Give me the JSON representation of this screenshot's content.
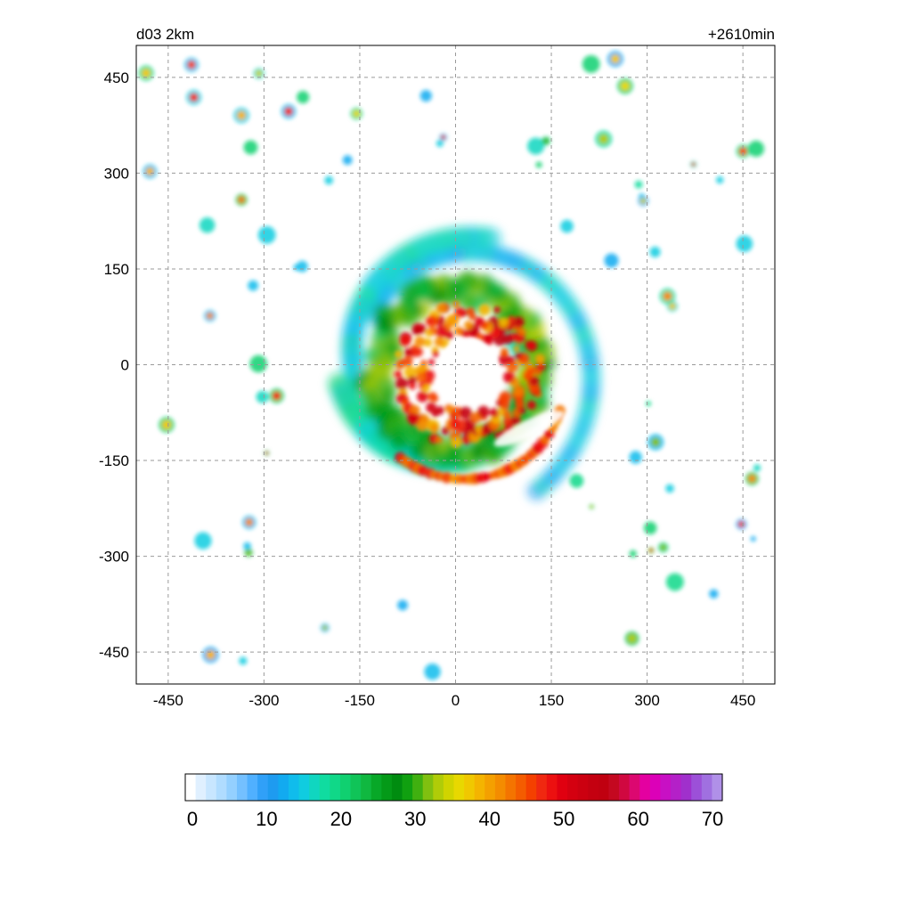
{
  "figure": {
    "domain_label": "d03 2km",
    "time_label": "+2610min"
  },
  "chart_data": {
    "type": "heatmap",
    "x_ticks": [
      -450,
      -300,
      -150,
      0,
      150,
      300,
      450
    ],
    "y_ticks": [
      450,
      300,
      150,
      0,
      -150,
      -300,
      -450
    ],
    "xlim": [
      -500,
      500
    ],
    "ylim": [
      -500,
      500
    ],
    "grid": true,
    "colorbar": {
      "ticks": [
        0,
        10,
        20,
        30,
        40,
        50,
        60,
        70
      ],
      "range": [
        0,
        70
      ],
      "colors": [
        "#ffffff",
        "#e0f0ff",
        "#c8e6ff",
        "#b0dcff",
        "#94d0ff",
        "#74c0ff",
        "#50b0ff",
        "#30a0f8",
        "#1e9bf0",
        "#12aaf0",
        "#10bcec",
        "#10cce0",
        "#10d6c0",
        "#10dca0",
        "#10d888",
        "#10d070",
        "#10c458",
        "#10b840",
        "#08a828",
        "#049a18",
        "#008c10",
        "#10a010",
        "#40b010",
        "#80c010",
        "#b0cc08",
        "#d0d400",
        "#e8d800",
        "#f0c800",
        "#f4b400",
        "#f4a000",
        "#f48c00",
        "#f47400",
        "#f45c00",
        "#f44000",
        "#f02810",
        "#ec1010",
        "#e00010",
        "#d40010",
        "#cc0010",
        "#c40010",
        "#c00010",
        "#c40820",
        "#d00840",
        "#dc0870",
        "#e400a0",
        "#dc00b8",
        "#c810c4",
        "#b420c8",
        "#a030cc",
        "#9c50d8",
        "#a070e0",
        "#b090e8"
      ]
    },
    "storm": {
      "center": [
        0,
        0
      ],
      "eye_radius_km": 45,
      "eyewall_peak_dbz": 55,
      "outer_band_dbz": 45,
      "feature_description": "spiral precipitation field around cyclone eye"
    }
  }
}
